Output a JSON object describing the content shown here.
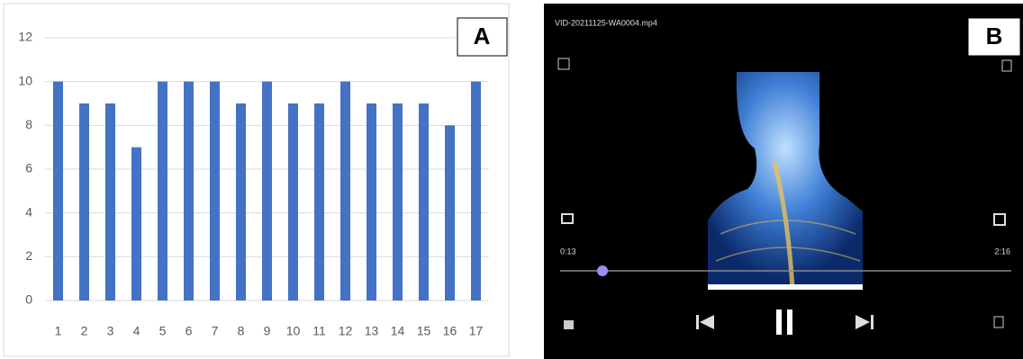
{
  "chart_data": {
    "type": "bar",
    "panel_label": "A",
    "categories": [
      "1",
      "2",
      "3",
      "4",
      "5",
      "6",
      "7",
      "8",
      "9",
      "10",
      "11",
      "12",
      "13",
      "14",
      "15",
      "16",
      "17"
    ],
    "values": [
      10,
      9,
      9,
      7,
      10,
      10,
      10,
      9,
      10,
      9,
      9,
      10,
      9,
      9,
      9,
      8,
      10
    ],
    "color": "#4472c4",
    "ylim": [
      0,
      12
    ],
    "yticks": [
      0,
      2,
      4,
      6,
      8,
      10,
      12
    ],
    "grid": true
  },
  "video_player": {
    "panel_label": "B",
    "file_name": "VID-20211125-WA0004.mp4",
    "current_time": "0:13",
    "duration": "2:16"
  }
}
